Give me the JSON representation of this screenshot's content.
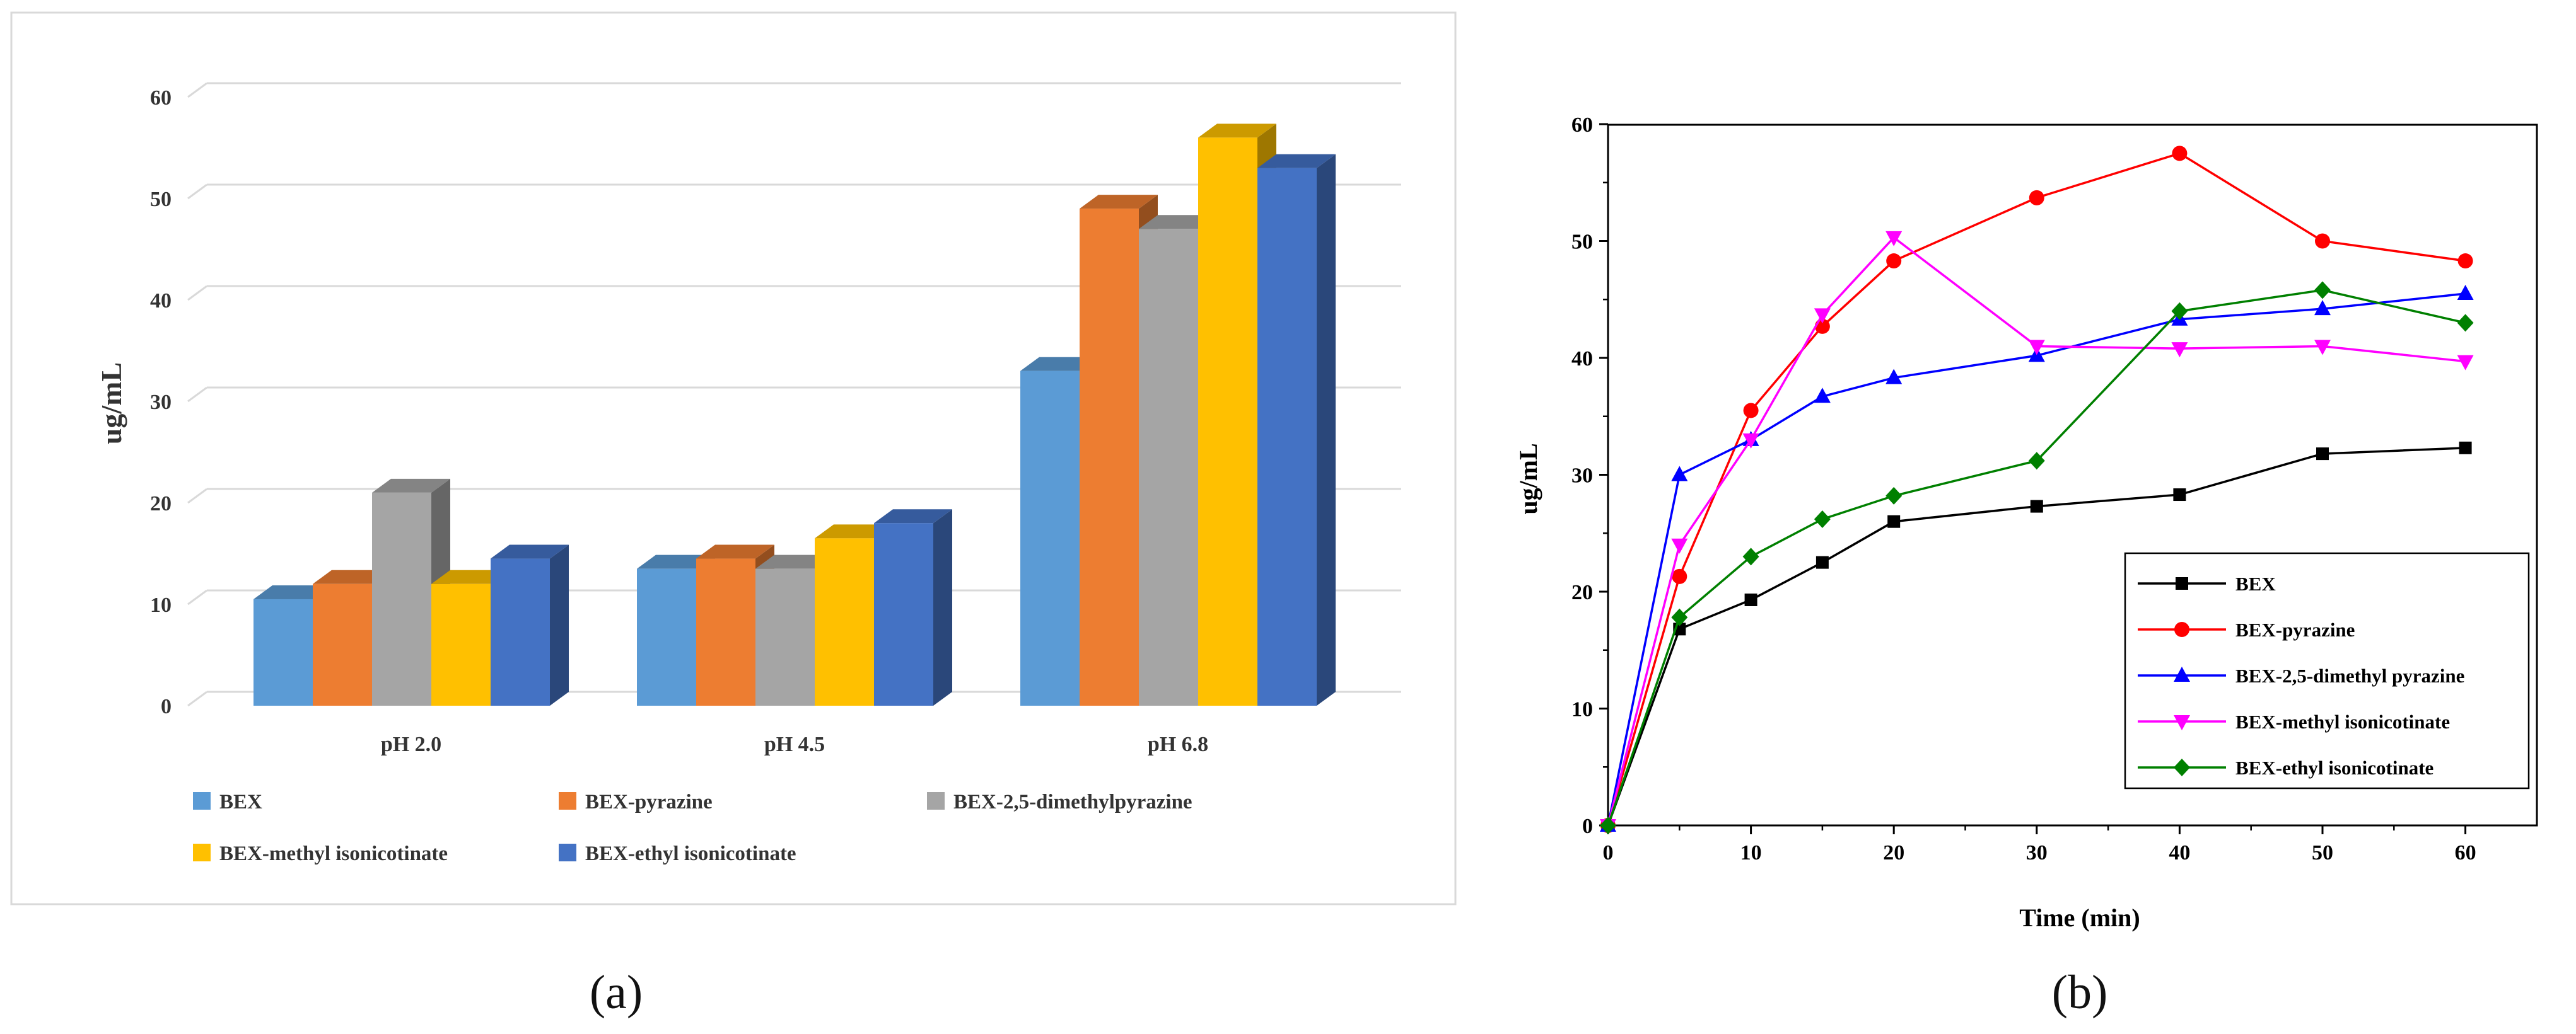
{
  "chart_data": [
    {
      "type": "bar",
      "panel_label": "(a)",
      "title": "",
      "xlabel": "",
      "ylabel": "ug/mL",
      "ylim": [
        0,
        60
      ],
      "yticks": [
        "0",
        "10",
        "20",
        "30",
        "40",
        "50",
        "60"
      ],
      "categories": [
        "pH 2.0",
        "pH 4.5",
        "pH 6.8"
      ],
      "legend_position": "bottom",
      "series": [
        {
          "name": "BEX",
          "color": "#5B9BD5",
          "values": [
            10.5,
            13.5,
            33
          ]
        },
        {
          "name": "BEX-pyrazine",
          "color": "#ED7D31",
          "values": [
            12,
            14.5,
            49
          ]
        },
        {
          "name": "BEX-2,5-dimethylpyrazine",
          "color": "#A5A5A5",
          "values": [
            21,
            13.5,
            47
          ]
        },
        {
          "name": "BEX-methyl isonicotinate",
          "color": "#FFC000",
          "values": [
            12,
            16.5,
            56
          ]
        },
        {
          "name": "BEX-ethyl isonicotinate",
          "color": "#4472C4",
          "values": [
            14.5,
            18,
            53
          ]
        }
      ]
    },
    {
      "type": "line",
      "panel_label": "(b)",
      "title": "",
      "xlabel": "Time (min)",
      "ylabel": "ug/mL",
      "xlim": [
        0,
        65
      ],
      "ylim": [
        0,
        60
      ],
      "xticks": [
        "0",
        "10",
        "20",
        "30",
        "40",
        "50",
        "60"
      ],
      "yticks": [
        "0",
        "10",
        "20",
        "30",
        "40",
        "50",
        "60"
      ],
      "x": [
        0,
        5,
        10,
        15,
        20,
        30,
        40,
        50,
        60
      ],
      "legend_position": "bottom-right",
      "series": [
        {
          "name": "BEX",
          "color": "#000000",
          "marker": "square",
          "values": [
            0,
            16.8,
            19.3,
            22.5,
            26,
            27.3,
            28.3,
            31.8,
            32.3
          ]
        },
        {
          "name": "BEX-pyrazine",
          "color": "#FF0000",
          "marker": "circle",
          "values": [
            0,
            21.3,
            35.5,
            42.7,
            48.3,
            53.7,
            57.5,
            50,
            48.3
          ]
        },
        {
          "name": "BEX-2,5-dimethyl pyrazine",
          "color": "#0000FF",
          "marker": "triangle-up",
          "values": [
            0,
            30,
            33,
            36.7,
            38.3,
            40.2,
            43.3,
            44.2,
            45.5
          ]
        },
        {
          "name": "BEX-methyl isonicotinate",
          "color": "#FF00FF",
          "marker": "triangle-down",
          "values": [
            0,
            24,
            33,
            43.7,
            50.3,
            41,
            40.8,
            41,
            39.7
          ]
        },
        {
          "name": "BEX-ethyl isonicotinate",
          "color": "#008000",
          "marker": "diamond",
          "values": [
            0,
            17.8,
            23,
            26.2,
            28.2,
            31.2,
            44,
            45.8,
            43
          ]
        }
      ]
    }
  ]
}
